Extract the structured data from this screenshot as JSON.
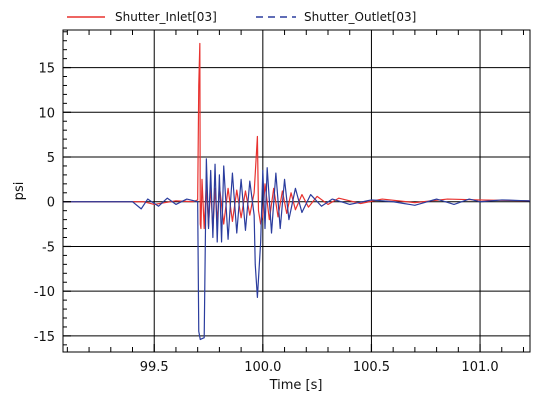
{
  "chart_data": {
    "type": "line",
    "xlabel": "Time  [s]",
    "ylabel": "psi",
    "xlim": [
      99.08,
      101.23
    ],
    "ylim": [
      -16.8,
      19.2
    ],
    "xticks": [
      99.5,
      100.0,
      100.5,
      101.0
    ],
    "xtick_labels": [
      "99.5",
      "100.0",
      "100.5",
      "101.0"
    ],
    "yticks": [
      -15,
      -10,
      -5,
      0,
      5,
      10,
      15
    ],
    "ytick_labels": [
      "-15",
      "-10",
      "-5",
      "0",
      "5",
      "10",
      "15"
    ],
    "grid": true,
    "legend_position": "top",
    "series": [
      {
        "name": "Shutter_Inlet[03]",
        "color": "#e8322f",
        "style": "solid",
        "points": [
          [
            99.08,
            0.0
          ],
          [
            99.45,
            0.0
          ],
          [
            99.5,
            -0.3
          ],
          [
            99.6,
            0.1
          ],
          [
            99.68,
            0.0
          ],
          [
            99.7,
            0.2
          ],
          [
            99.705,
            13.0
          ],
          [
            99.71,
            17.7
          ],
          [
            99.712,
            -2.5
          ],
          [
            99.715,
            -3.0
          ],
          [
            99.72,
            2.5
          ],
          [
            99.73,
            -3.0
          ],
          [
            99.74,
            2.0
          ],
          [
            99.75,
            -2.8
          ],
          [
            99.76,
            1.8
          ],
          [
            99.77,
            -3.2
          ],
          [
            99.78,
            1.5
          ],
          [
            99.79,
            -2.3
          ],
          [
            99.8,
            1.8
          ],
          [
            99.82,
            -2.5
          ],
          [
            99.84,
            1.5
          ],
          [
            99.86,
            -2.2
          ],
          [
            99.88,
            1.3
          ],
          [
            99.9,
            -1.8
          ],
          [
            99.92,
            1.2
          ],
          [
            99.94,
            -1.5
          ],
          [
            99.96,
            1.0
          ],
          [
            99.975,
            7.3
          ],
          [
            99.98,
            -1.0
          ],
          [
            99.99,
            -2.5
          ],
          [
            100.0,
            -1.5
          ],
          [
            100.01,
            2.0
          ],
          [
            100.03,
            -2.0
          ],
          [
            100.05,
            1.5
          ],
          [
            100.07,
            -1.7
          ],
          [
            100.09,
            1.2
          ],
          [
            100.11,
            -1.3
          ],
          [
            100.13,
            1.0
          ],
          [
            100.15,
            -0.9
          ],
          [
            100.18,
            0.8
          ],
          [
            100.21,
            -0.6
          ],
          [
            100.25,
            0.6
          ],
          [
            100.3,
            -0.3
          ],
          [
            100.35,
            0.4
          ],
          [
            100.45,
            -0.2
          ],
          [
            100.55,
            0.3
          ],
          [
            100.7,
            -0.1
          ],
          [
            100.85,
            0.3
          ],
          [
            101.0,
            0.2
          ],
          [
            101.23,
            0.1
          ]
        ]
      },
      {
        "name": "Shutter_Outlet[03]",
        "color": "#2b3d9e",
        "style": "dash",
        "points": [
          [
            99.08,
            0.0
          ],
          [
            99.4,
            0.0
          ],
          [
            99.44,
            -0.8
          ],
          [
            99.47,
            0.3
          ],
          [
            99.52,
            -0.5
          ],
          [
            99.56,
            0.4
          ],
          [
            99.6,
            -0.3
          ],
          [
            99.65,
            0.3
          ],
          [
            99.7,
            0.0
          ],
          [
            99.705,
            -14.5
          ],
          [
            99.712,
            -15.4
          ],
          [
            99.73,
            -15.2
          ],
          [
            99.735,
            -5.0
          ],
          [
            99.74,
            4.8
          ],
          [
            99.75,
            -3.0
          ],
          [
            99.76,
            3.5
          ],
          [
            99.77,
            -4.0
          ],
          [
            99.78,
            4.2
          ],
          [
            99.79,
            -4.5
          ],
          [
            99.8,
            3.0
          ],
          [
            99.81,
            -4.5
          ],
          [
            99.82,
            4.0
          ],
          [
            99.84,
            -4.2
          ],
          [
            99.86,
            3.2
          ],
          [
            99.88,
            -3.5
          ],
          [
            99.9,
            2.5
          ],
          [
            99.92,
            -3.2
          ],
          [
            99.94,
            2.3
          ],
          [
            99.96,
            -1.5
          ],
          [
            99.965,
            -7.0
          ],
          [
            99.975,
            -10.7
          ],
          [
            99.99,
            -4.5
          ],
          [
            100.0,
            3.5
          ],
          [
            100.01,
            -3.0
          ],
          [
            100.02,
            3.8
          ],
          [
            100.04,
            -3.5
          ],
          [
            100.06,
            3.2
          ],
          [
            100.08,
            -3.0
          ],
          [
            100.1,
            2.5
          ],
          [
            100.12,
            -2.0
          ],
          [
            100.15,
            1.5
          ],
          [
            100.18,
            -1.2
          ],
          [
            100.22,
            0.8
          ],
          [
            100.27,
            -0.5
          ],
          [
            100.32,
            0.3
          ],
          [
            100.4,
            -0.3
          ],
          [
            100.5,
            0.2
          ],
          [
            100.6,
            0.0
          ],
          [
            100.7,
            -0.4
          ],
          [
            100.8,
            0.3
          ],
          [
            100.88,
            -0.3
          ],
          [
            100.95,
            0.3
          ],
          [
            101.0,
            0.0
          ],
          [
            101.1,
            0.2
          ],
          [
            101.23,
            0.1
          ]
        ]
      }
    ]
  }
}
